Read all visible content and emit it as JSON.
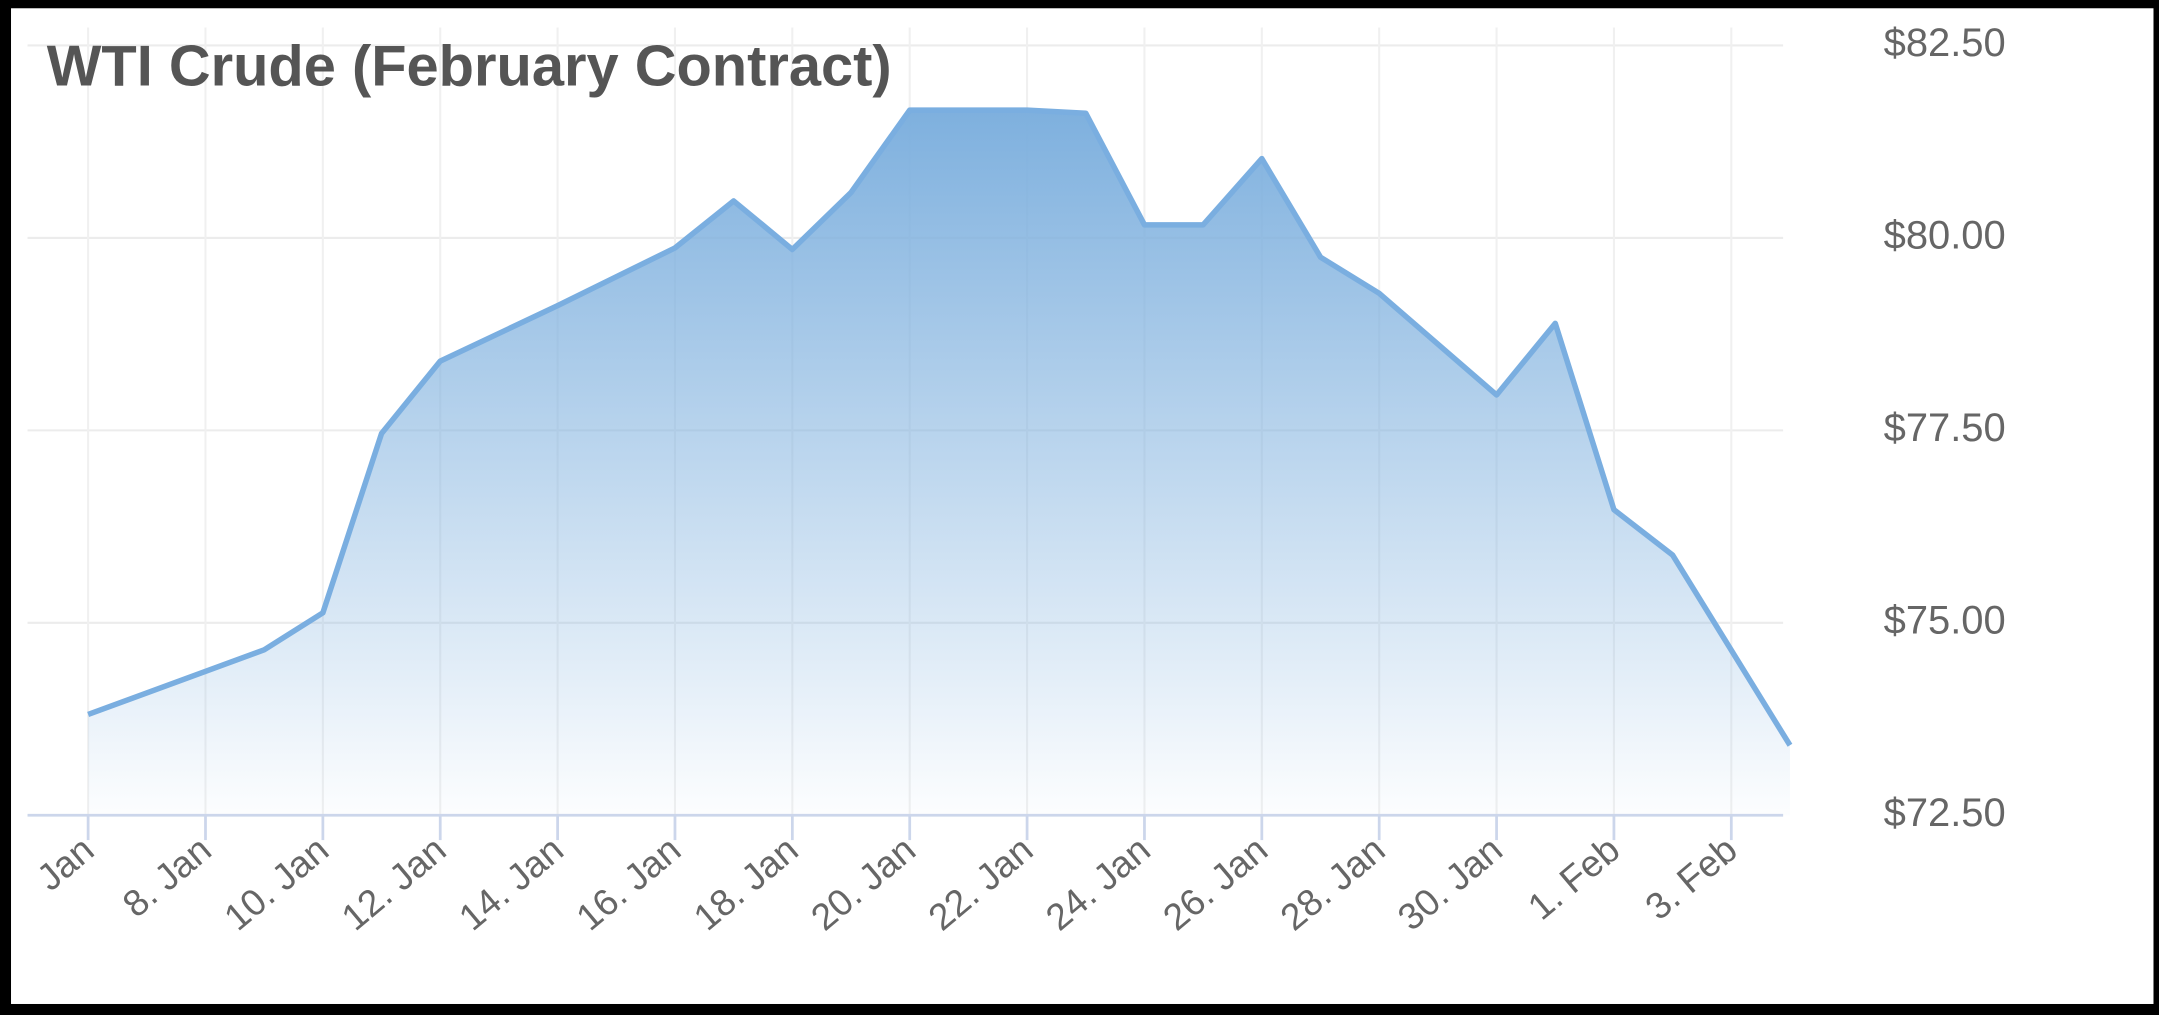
{
  "chart_data": {
    "type": "area",
    "title": "WTI Crude (February Contract)",
    "x": [
      6,
      9,
      10,
      11,
      12,
      14,
      16,
      17,
      18,
      19,
      20,
      21,
      22,
      23,
      24,
      25,
      26,
      27,
      28,
      30,
      31,
      32,
      33,
      35
    ],
    "values": [
      73.81,
      74.65,
      75.13,
      77.46,
      78.4,
      79.12,
      79.87,
      80.48,
      79.85,
      80.59,
      81.66,
      81.66,
      81.66,
      81.62,
      80.17,
      80.17,
      81.03,
      79.75,
      79.28,
      77.96,
      78.89,
      76.47,
      75.88,
      73.41
    ],
    "color": "#7aaee0",
    "xlim": [
      6,
      35
    ],
    "xticks": [
      {
        "value": 6,
        "label": "Jan"
      },
      {
        "value": 8,
        "label": "8. Jan"
      },
      {
        "value": 10,
        "label": "10. Jan"
      },
      {
        "value": 12,
        "label": "12. Jan"
      },
      {
        "value": 14,
        "label": "14. Jan"
      },
      {
        "value": 16,
        "label": "16. Jan"
      },
      {
        "value": 18,
        "label": "18. Jan"
      },
      {
        "value": 20,
        "label": "20. Jan"
      },
      {
        "value": 22,
        "label": "22. Jan"
      },
      {
        "value": 24,
        "label": "24. Jan"
      },
      {
        "value": 26,
        "label": "26. Jan"
      },
      {
        "value": 28,
        "label": "28. Jan"
      },
      {
        "value": 30,
        "label": "30. Jan"
      },
      {
        "value": 32,
        "label": "1. Feb"
      },
      {
        "value": 34,
        "label": "3. Feb"
      }
    ],
    "ylim": [
      72.5,
      82.5
    ],
    "yticks": [
      {
        "value": 72.5,
        "label": "$72.50"
      },
      {
        "value": 75,
        "label": "$75.00"
      },
      {
        "value": 77.5,
        "label": "$77.50"
      },
      {
        "value": 80,
        "label": "$80.00"
      },
      {
        "value": 82.5,
        "label": "$82.50"
      }
    ],
    "grid": true
  }
}
